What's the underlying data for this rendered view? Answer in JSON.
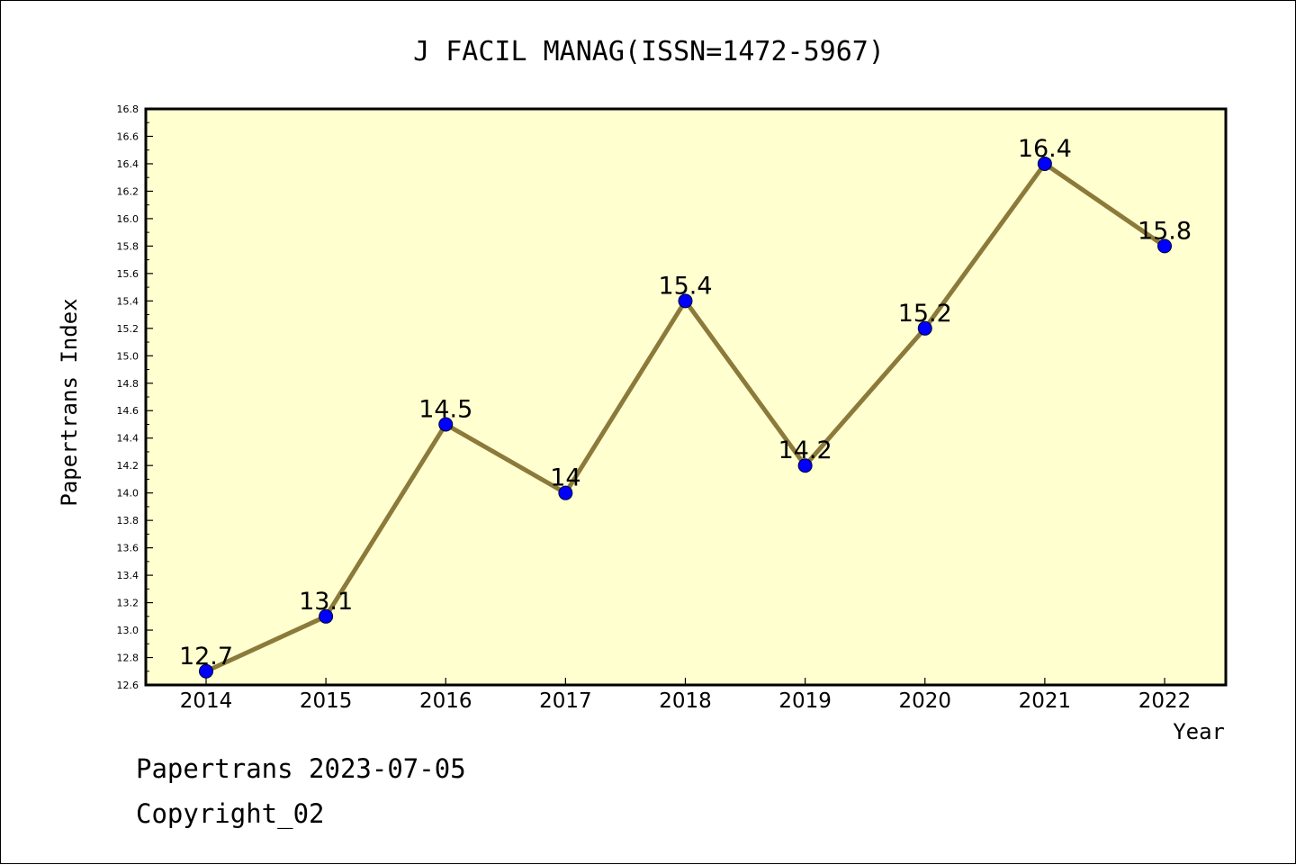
{
  "chart_data": {
    "type": "line",
    "title": "J FACIL MANAG(ISSN=1472-5967)",
    "xlabel": "Year",
    "ylabel": "Papertrans Index",
    "categories": [
      "2014",
      "2015",
      "2016",
      "2017",
      "2018",
      "2019",
      "2020",
      "2021",
      "2022"
    ],
    "values": [
      12.7,
      13.1,
      14.5,
      14.0,
      15.4,
      14.2,
      15.2,
      16.4,
      15.8
    ],
    "data_labels": [
      "12.7",
      "13.1",
      "14.5",
      "14",
      "15.4",
      "14.2",
      "15.2",
      "16.4",
      "15.8"
    ],
    "ylim": [
      12.6,
      16.8
    ],
    "yticks": [
      "12.6",
      "12.8",
      "13.0",
      "13.2",
      "13.4",
      "13.6",
      "13.8",
      "14.0",
      "14.2",
      "14.4",
      "14.6",
      "14.8",
      "15.0",
      "15.2",
      "15.4",
      "15.6",
      "15.8",
      "16.0",
      "16.2",
      "16.4",
      "16.6",
      "16.8"
    ],
    "grid": false,
    "legend": "none",
    "colors": {
      "line": "#8b7a3a",
      "marker": "#0000ff",
      "plot_background": "#ffffd0"
    }
  },
  "footer": {
    "line1": "Papertrans 2023-07-05",
    "line2": "Copyright_02"
  }
}
